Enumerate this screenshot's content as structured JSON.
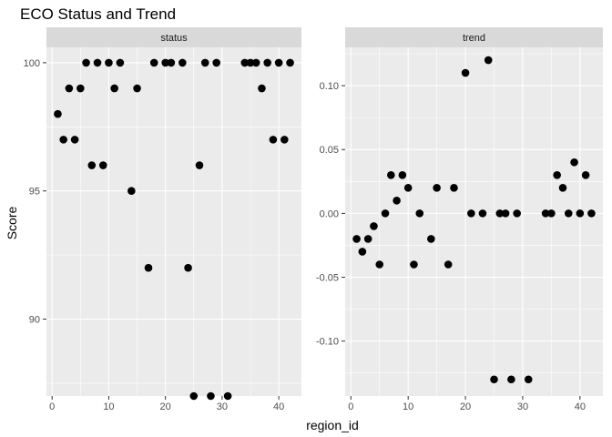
{
  "chart_data": {
    "type": "scatter",
    "title": "ECO Status and Trend",
    "xlabel": "region_id",
    "ylabel": "Score",
    "grid": true,
    "facets": [
      {
        "name": "status",
        "xlim": [
          -1,
          44
        ],
        "ylim": [
          87,
          100.6
        ],
        "x_ticks": [
          0,
          10,
          20,
          30,
          40
        ],
        "y_ticks": [
          90,
          95,
          100
        ],
        "y_tick_labels": [
          "90",
          "95",
          "100"
        ],
        "points": [
          [
            1,
            98
          ],
          [
            2,
            97
          ],
          [
            3,
            99
          ],
          [
            4,
            97
          ],
          [
            5,
            99
          ],
          [
            6,
            100
          ],
          [
            7,
            96
          ],
          [
            8,
            100
          ],
          [
            9,
            96
          ],
          [
            10,
            100
          ],
          [
            11,
            99
          ],
          [
            12,
            100
          ],
          [
            14,
            95
          ],
          [
            15,
            99
          ],
          [
            17,
            92
          ],
          [
            18,
            100
          ],
          [
            20,
            100
          ],
          [
            21,
            100
          ],
          [
            23,
            100
          ],
          [
            24,
            92
          ],
          [
            25,
            87
          ],
          [
            26,
            96
          ],
          [
            27,
            100
          ],
          [
            28,
            87
          ],
          [
            29,
            100
          ],
          [
            31,
            87
          ],
          [
            34,
            100
          ],
          [
            35,
            100
          ],
          [
            36,
            100
          ],
          [
            37,
            99
          ],
          [
            38,
            100
          ],
          [
            39,
            97
          ],
          [
            40,
            100
          ],
          [
            41,
            97
          ],
          [
            42,
            100
          ]
        ]
      },
      {
        "name": "trend",
        "xlim": [
          -1,
          44
        ],
        "ylim": [
          -0.143,
          0.13
        ],
        "x_ticks": [
          0,
          10,
          20,
          30,
          40
        ],
        "y_ticks": [
          -0.1,
          -0.05,
          0.0,
          0.05,
          0.1
        ],
        "y_tick_labels": [
          "-0.10",
          "-0.05",
          "0.00",
          "0.05",
          "0.10"
        ],
        "points": [
          [
            1,
            -0.02
          ],
          [
            2,
            -0.03
          ],
          [
            3,
            -0.02
          ],
          [
            4,
            -0.01
          ],
          [
            5,
            -0.04
          ],
          [
            6,
            0.0
          ],
          [
            7,
            0.03
          ],
          [
            8,
            0.01
          ],
          [
            9,
            0.03
          ],
          [
            10,
            0.02
          ],
          [
            11,
            -0.04
          ],
          [
            12,
            0.0
          ],
          [
            14,
            -0.02
          ],
          [
            15,
            0.02
          ],
          [
            17,
            -0.04
          ],
          [
            18,
            0.02
          ],
          [
            20,
            0.11
          ],
          [
            21,
            0.0
          ],
          [
            23,
            0.0
          ],
          [
            24,
            0.12
          ],
          [
            25,
            -0.13
          ],
          [
            26,
            0.0
          ],
          [
            27,
            0.0
          ],
          [
            28,
            -0.13
          ],
          [
            29,
            0.0
          ],
          [
            31,
            -0.13
          ],
          [
            34,
            0.0
          ],
          [
            35,
            0.0
          ],
          [
            36,
            0.03
          ],
          [
            37,
            0.02
          ],
          [
            38,
            0.0
          ],
          [
            39,
            0.04
          ],
          [
            40,
            0.0
          ],
          [
            41,
            0.03
          ],
          [
            42,
            0.0
          ]
        ]
      }
    ]
  }
}
